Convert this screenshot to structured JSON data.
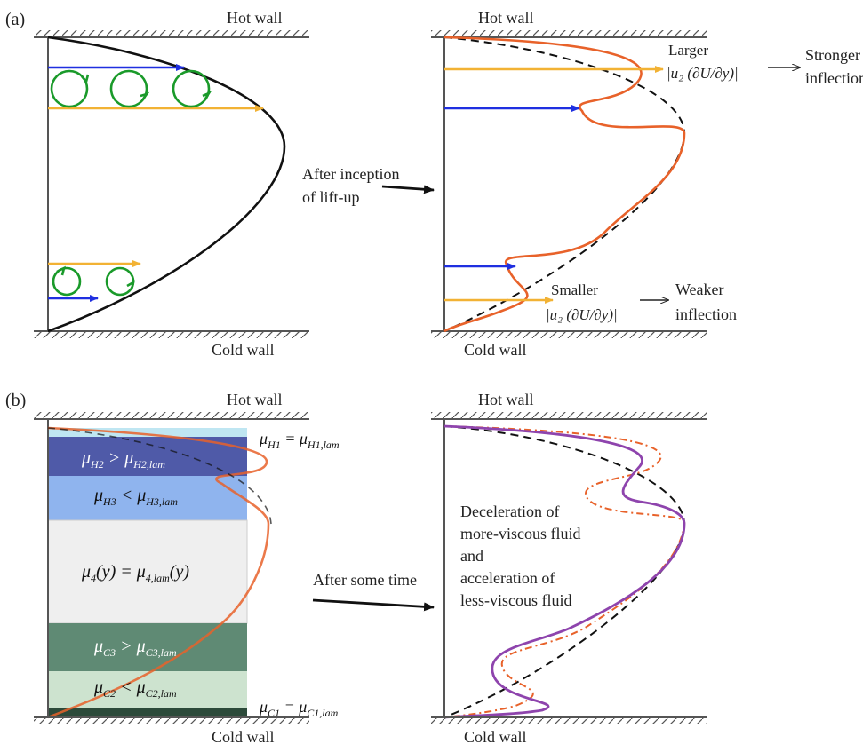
{
  "panel_a": {
    "panel_label": "(a)",
    "left_top": "Hot wall",
    "left_bottom": "Cold wall",
    "right_top": "Hot wall",
    "right_bottom": "Cold wall",
    "arrow_label_line1": "After inception",
    "arrow_label_line2": "of lift-up",
    "upper_note_line1": "Larger",
    "upper_note_line2": "|u₂ (∂U/∂y)|",
    "upper_result_line1": "Stronger",
    "upper_result_line2": "inflection",
    "lower_note_line1": "Smaller",
    "lower_note_line2": "|u₂ (∂U/∂y)|",
    "lower_result_line1": "Weaker",
    "lower_result_line2": "inflection"
  },
  "panel_b": {
    "panel_label": "(b)",
    "left_top": "Hot wall",
    "left_bottom": "Cold wall",
    "right_top": "Hot wall",
    "right_bottom": "Cold wall",
    "arrow_label": "After some time",
    "layers": {
      "h1": {
        "mu": "μ",
        "sub1": "H1",
        "op": " = ",
        "mu2": "μ",
        "sub2": "H1,lam"
      },
      "h2": {
        "mu": "μ",
        "sub1": "H2",
        "op": " > ",
        "mu2": "μ",
        "sub2": "H2,lam"
      },
      "h3": {
        "mu": "μ",
        "sub1": "H3",
        "op": " < ",
        "mu2": "μ",
        "sub2": "H3,lam"
      },
      "m4": {
        "mu": "μ",
        "sub1": "4",
        "arg": "(y)",
        "op": " = ",
        "mu2": "μ",
        "sub2": "4,lam",
        "arg2": "(y)"
      },
      "c3": {
        "mu": "μ",
        "sub1": "C3",
        "op": " > ",
        "mu2": "μ",
        "sub2": "C3,lam"
      },
      "c2": {
        "mu": "μ",
        "sub1": "C2",
        "op": " < ",
        "mu2": "μ",
        "sub2": "C2,lam"
      },
      "c1": {
        "mu": "μ",
        "sub1": "C1",
        "op": " = ",
        "mu2": "μ",
        "sub2": "C1,lam"
      }
    },
    "note_lines": [
      "Deceleration of",
      "more-viscous fluid",
      "and",
      "acceleration of",
      "less-viscous fluid"
    ]
  },
  "colors": {
    "laminar_profile": "#111111",
    "perturbed_profile": "#e8622a",
    "final_profile": "#8e44ad",
    "arrow_fast": "#f2b234",
    "arrow_slow": "#1f2fe0",
    "vortex": "#1a9a2a",
    "layer_h1": "#bfe6f2",
    "layer_h2": "#4f5aa8",
    "layer_h3": "#8fb4ee",
    "layer_m4": "#efefef",
    "layer_c3": "#5f8a74",
    "layer_c2": "#cde3cf",
    "layer_c1": "#2c4a3a"
  }
}
